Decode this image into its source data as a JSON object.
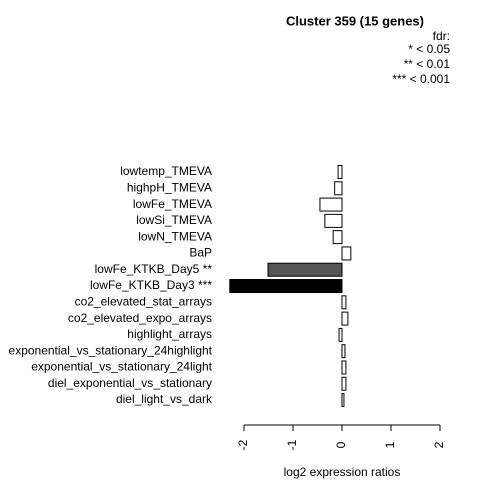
{
  "chart_data": {
    "type": "barh",
    "title": "Cluster 359 (15 genes)",
    "legend_title": "fdr:",
    "legend_items": [
      "* < 0.05",
      "** < 0.01",
      "*** < 0.001"
    ],
    "x_label": "log2 expression ratios",
    "categories": [
      "lowtemp_TMEVA",
      "highpH_TMEVA",
      "lowFe_TMEVA",
      "lowSi_TMEVA",
      "lowN_TMEVA",
      "BaP",
      "lowFe_KTKB_Day5 **",
      "lowFe_KTKB_Day3 ***",
      "co2_elevated_stat_arrays",
      "co2_elevated_expo_arrays",
      "highlight_arrays",
      "exponential_vs_stationary_24highlight",
      "exponential_vs_stationary_24light",
      "diel_exponential_vs_stationary",
      "diel_light_vs_dark"
    ],
    "values": [
      -0.08,
      -0.15,
      -0.45,
      -0.35,
      -0.18,
      0.18,
      -1.51,
      -2.29,
      0.08,
      0.12,
      -0.06,
      0.06,
      0.08,
      0.08,
      0.04
    ],
    "colors": [
      "#ffffff",
      "#ffffff",
      "#ffffff",
      "#ffffff",
      "#ffffff",
      "#ffffff",
      "#555555",
      "#000000",
      "#ffffff",
      "#ffffff",
      "#ffffff",
      "#ffffff",
      "#ffffff",
      "#ffffff",
      "#ffffff"
    ],
    "xlim": [
      -2.3,
      2.05
    ],
    "xticks": [
      -2,
      -1,
      0,
      1,
      2
    ]
  }
}
